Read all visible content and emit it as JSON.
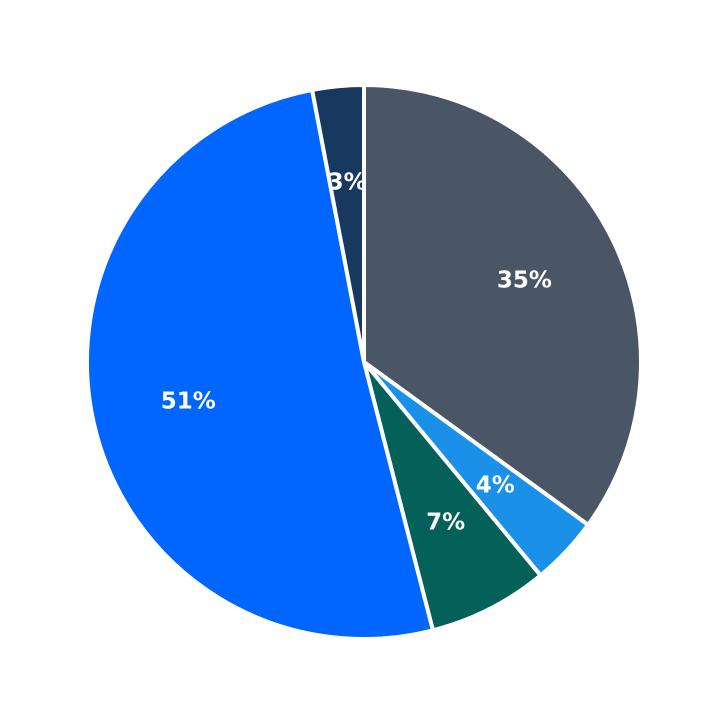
{
  "chart_data": {
    "type": "pie",
    "slices": [
      {
        "label": "35%",
        "value": 35,
        "color": "#4a5565"
      },
      {
        "label": "4%",
        "value": 4,
        "color": "#1b90e8"
      },
      {
        "label": "7%",
        "value": 7,
        "color": "#03615a"
      },
      {
        "label": "51%",
        "value": 51,
        "color": "#0066ff"
      },
      {
        "label": "3%",
        "value": 3,
        "color": "#17395f"
      }
    ],
    "start_angle_deg": 0,
    "direction": "clockwise",
    "label_position_fraction_of_radius": 0.65,
    "label_color": "#ffffff",
    "slice_border_color": "#ffffff",
    "background_color": "#ffffff",
    "legend": "none"
  }
}
